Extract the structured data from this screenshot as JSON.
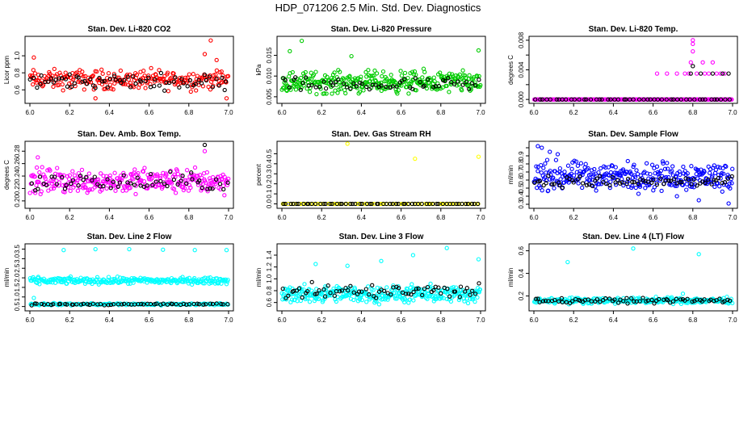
{
  "title": "HDP_071206  2.5 Min. Std. Dev. Diagnostics",
  "colors": {
    "red": "#ff0000",
    "green": "#00cc00",
    "magenta": "#ff00ff",
    "yellow": "#ffff00",
    "blue": "#0000ff",
    "cyan": "#00ffff",
    "black": "#000000"
  },
  "chart_data": [
    {
      "type": "scatter",
      "title": "Stan. Dev. Li-820 CO2",
      "xlabel": "",
      "ylabel": "Licor ppm",
      "xlim": [
        6.0,
        7.0
      ],
      "ylim": [
        0.47,
        1.2
      ],
      "xticks": [
        "6.0",
        "6.2",
        "6.4",
        "6.6",
        "6.8",
        "7.0"
      ],
      "yticks": [
        0.6,
        0.8,
        1.0
      ],
      "ytick_labels": [
        "0.6",
        "0.8",
        "1.0"
      ],
      "series": [
        {
          "color": "#ff0000",
          "n": 240,
          "level": 0.72,
          "spread": 0.08,
          "outliers": [
            [
              6.02,
              0.98
            ],
            [
              6.91,
              1.18
            ],
            [
              6.88,
              1.02
            ],
            [
              6.94,
              0.95
            ],
            [
              6.33,
              0.5
            ],
            [
              6.99,
              0.5
            ]
          ]
        },
        {
          "color": "#000000",
          "n": 70,
          "level": 0.7,
          "spread": 0.06,
          "outliers": [
            [
              6.2,
              0.78
            ]
          ]
        }
      ]
    },
    {
      "type": "scatter",
      "title": "Stan. Dev. Li-820 Pressure",
      "xlabel": "",
      "ylabel": "kPa",
      "xlim": [
        6.0,
        7.0
      ],
      "ylim": [
        0.004,
        0.019
      ],
      "xticks": [
        "6.0",
        "6.2",
        "6.4",
        "6.6",
        "6.8",
        "7.0"
      ],
      "yticks": [
        0.005,
        0.01,
        0.015
      ],
      "ytick_labels": [
        "0.005",
        "0.010",
        "0.015"
      ],
      "series": [
        {
          "color": "#00cc00",
          "n": 330,
          "level": 0.0085,
          "spread": 0.0018,
          "outliers": [
            [
              6.1,
              0.0185
            ],
            [
              6.04,
              0.016
            ],
            [
              6.99,
              0.0162
            ],
            [
              6.35,
              0.0148
            ]
          ]
        },
        {
          "color": "#000000",
          "n": 60,
          "level": 0.0078,
          "spread": 0.0012,
          "outliers": []
        }
      ]
    },
    {
      "type": "scatter",
      "title": "Stan. Dev. Li-820 Temp.",
      "xlabel": "",
      "ylabel": "degrees C",
      "xlim": [
        6.0,
        7.0
      ],
      "ylim": [
        -0.0002,
        0.0082
      ],
      "xticks": [
        "6.0",
        "6.2",
        "6.4",
        "6.6",
        "6.8",
        "7.0"
      ],
      "yticks": [
        0.0,
        0.002,
        0.004,
        0.006,
        0.008
      ],
      "ytick_labels": [
        "0.000",
        "",
        "0.004",
        "",
        "0.008"
      ],
      "series": [
        {
          "color": "#ff00ff",
          "n": 220,
          "level": 0.0,
          "spread": 0.0,
          "outliers": [
            [
              6.62,
              0.0035
            ],
            [
              6.67,
              0.0035
            ],
            [
              6.72,
              0.0035
            ],
            [
              6.76,
              0.0035
            ],
            [
              6.78,
              0.0035
            ],
            [
              6.79,
              0.005
            ],
            [
              6.8,
              0.0065
            ],
            [
              6.8,
              0.008
            ],
            [
              6.8,
              0.0075
            ],
            [
              6.82,
              0.0035
            ],
            [
              6.85,
              0.005
            ],
            [
              6.88,
              0.0035
            ],
            [
              6.9,
              0.005
            ],
            [
              6.92,
              0.0035
            ],
            [
              6.94,
              0.0035
            ],
            [
              6.96,
              0.0035
            ],
            [
              6.86,
              0.0035
            ]
          ]
        },
        {
          "color": "#000000",
          "n": 50,
          "level": 0.0,
          "spread": 0.0,
          "outliers": [
            [
              6.79,
              0.0035
            ],
            [
              6.8,
              0.0045
            ],
            [
              6.84,
              0.0035
            ],
            [
              6.9,
              0.0035
            ],
            [
              6.95,
              0.0035
            ],
            [
              6.98,
              0.0035
            ]
          ]
        }
      ]
    },
    {
      "type": "scatter",
      "title": "Stan. Dev. Amb. Box Temp.",
      "xlabel": "",
      "ylabel": "degrees C",
      "xlim": [
        6.0,
        7.0
      ],
      "ylim": [
        0.192,
        0.292
      ],
      "xticks": [
        "6.0",
        "6.2",
        "6.4",
        "6.6",
        "6.8",
        "7.0"
      ],
      "yticks": [
        0.2,
        0.22,
        0.24,
        0.26,
        0.28
      ],
      "ytick_labels": [
        "0.20",
        "0.22",
        "0.24",
        "0.26",
        "0.28"
      ],
      "series": [
        {
          "color": "#ff00ff",
          "n": 300,
          "level": 0.232,
          "spread": 0.014,
          "outliers": [
            [
              6.04,
              0.27
            ],
            [
              6.88,
              0.28
            ]
          ]
        },
        {
          "color": "#000000",
          "n": 60,
          "level": 0.23,
          "spread": 0.01,
          "outliers": [
            [
              6.88,
              0.29
            ]
          ]
        }
      ]
    },
    {
      "type": "scatter",
      "title": "Stan. Dev. Gas Stream RH",
      "xlabel": "",
      "ylabel": "percent",
      "xlim": [
        6.0,
        7.0
      ],
      "ylim": [
        -0.02,
        0.6
      ],
      "xticks": [
        "6.0",
        "6.2",
        "6.4",
        "6.6",
        "6.8",
        "7.0"
      ],
      "yticks": [
        0.0,
        0.1,
        0.2,
        0.3,
        0.4,
        0.5
      ],
      "ytick_labels": [
        "0.0",
        "0.1",
        "0.2",
        "0.3",
        "0.4",
        "0.5"
      ],
      "series": [
        {
          "color": "#ffff00",
          "n": 80,
          "level": 0.0,
          "spread": 0.0,
          "outliers": [
            [
              6.33,
              0.6
            ],
            [
              6.67,
              0.45
            ],
            [
              6.99,
              0.47
            ],
            [
              6.01,
              0.0
            ]
          ]
        },
        {
          "color": "#000000",
          "n": 60,
          "level": 0.0,
          "spread": 0.0,
          "outliers": []
        }
      ]
    },
    {
      "type": "scatter",
      "title": "Stan. Dev. Sample Flow",
      "xlabel": "",
      "ylabel": "ml/min",
      "xlim": [
        6.0,
        7.0
      ],
      "ylim": [
        0.28,
        1.05
      ],
      "xticks": [
        "6.0",
        "6.2",
        "6.4",
        "6.6",
        "6.8",
        "7.0"
      ],
      "yticks": [
        0.3,
        0.4,
        0.5,
        0.6,
        0.7,
        0.8,
        0.9,
        1.0
      ],
      "ytick_labels": [
        "0.3",
        "0.4",
        "0.5",
        "0.6",
        "0.7",
        "0.8",
        "0.9",
        ""
      ],
      "series": [
        {
          "color": "#0000ff",
          "n": 320,
          "level": 0.65,
          "spread": 0.12,
          "outliers": [
            [
              6.02,
              1.02
            ],
            [
              6.04,
              1.0
            ],
            [
              6.08,
              0.95
            ],
            [
              6.12,
              0.92
            ],
            [
              6.83,
              0.35
            ],
            [
              6.98,
              0.31
            ],
            [
              6.72,
              0.4
            ]
          ]
        },
        {
          "color": "#000000",
          "n": 70,
          "level": 0.58,
          "spread": 0.05,
          "outliers": []
        }
      ]
    },
    {
      "type": "scatter",
      "title": "Stan. Dev. Line 2 Flow",
      "xlabel": "",
      "ylabel": "ml/min",
      "xlim": [
        6.0,
        7.0
      ],
      "ylim": [
        0.4,
        3.65
      ],
      "xticks": [
        "6.0",
        "6.2",
        "6.4",
        "6.6",
        "6.8",
        "7.0"
      ],
      "yticks": [
        0.5,
        1.0,
        1.5,
        2.0,
        2.5,
        3.0,
        3.5
      ],
      "ytick_labels": [
        "0.5",
        "1.0",
        "1.5",
        "2.0",
        "2.5",
        "3.0",
        "3.5"
      ],
      "series": [
        {
          "color": "#00ffff",
          "n": 260,
          "level": 1.85,
          "spread": 0.12,
          "outliers": [
            [
              6.17,
              3.45
            ],
            [
              6.33,
              3.5
            ],
            [
              6.5,
              3.5
            ],
            [
              6.67,
              3.47
            ],
            [
              6.83,
              3.45
            ],
            [
              6.99,
              3.45
            ],
            [
              6.02,
              0.95
            ]
          ]
        },
        {
          "color": "#00ffff",
          "n": 160,
          "level": 0.62,
          "spread": 0.04,
          "outliers": []
        },
        {
          "color": "#000000",
          "n": 60,
          "level": 0.62,
          "spread": 0.03,
          "outliers": []
        }
      ]
    },
    {
      "type": "scatter",
      "title": "Stan. Dev. Line 3 Flow",
      "xlabel": "",
      "ylabel": "ml/min",
      "xlim": [
        6.0,
        7.0
      ],
      "ylim": [
        0.5,
        1.55
      ],
      "xticks": [
        "6.0",
        "6.2",
        "6.4",
        "6.6",
        "6.8",
        "7.0"
      ],
      "yticks": [
        0.6,
        0.8,
        1.0,
        1.2,
        1.4
      ],
      "ytick_labels": [
        "0.6",
        "0.8",
        "1.0",
        "1.2",
        "1.4"
      ],
      "series": [
        {
          "color": "#00ffff",
          "n": 340,
          "level": 0.74,
          "spread": 0.1,
          "outliers": [
            [
              6.17,
              1.25
            ],
            [
              6.33,
              1.22
            ],
            [
              6.5,
              1.3
            ],
            [
              6.66,
              1.4
            ],
            [
              6.83,
              1.52
            ],
            [
              6.99,
              1.33
            ]
          ]
        },
        {
          "color": "#000000",
          "n": 70,
          "level": 0.78,
          "spread": 0.09,
          "outliers": []
        }
      ]
    },
    {
      "type": "scatter",
      "title": "Stan. Dev. Line 4 (LT) Flow",
      "xlabel": "",
      "ylabel": "ml/min",
      "xlim": [
        6.0,
        7.0
      ],
      "ylim": [
        0.09,
        0.64
      ],
      "xticks": [
        "6.0",
        "6.2",
        "6.4",
        "6.6",
        "6.8",
        "7.0"
      ],
      "yticks": [
        0.2,
        0.4,
        0.6
      ],
      "ytick_labels": [
        "0.2",
        "0.4",
        "0.6"
      ],
      "series": [
        {
          "color": "#00ffff",
          "n": 280,
          "level": 0.16,
          "spread": 0.018,
          "outliers": [
            [
              6.17,
              0.5
            ],
            [
              6.5,
              0.62
            ],
            [
              6.83,
              0.57
            ],
            [
              6.75,
              0.22
            ]
          ]
        },
        {
          "color": "#000000",
          "n": 70,
          "level": 0.16,
          "spread": 0.015,
          "outliers": []
        }
      ]
    }
  ]
}
